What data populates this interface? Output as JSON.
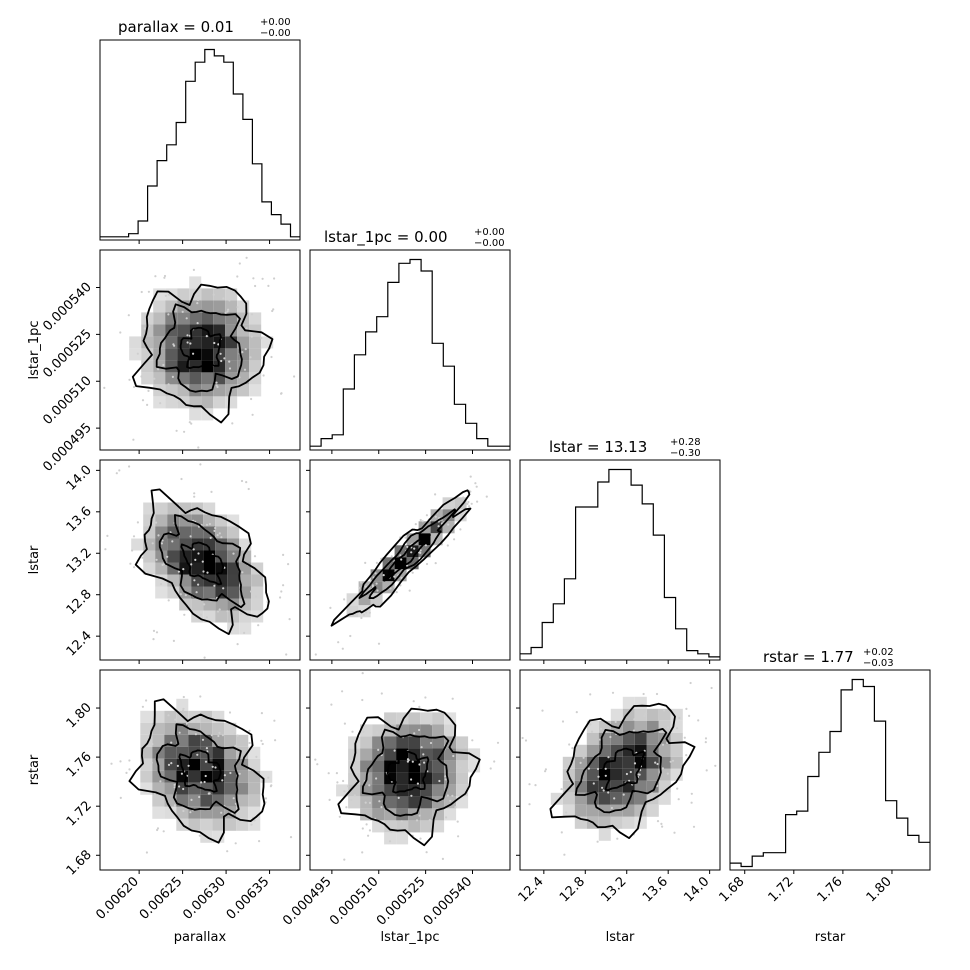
{
  "colors": {
    "ink": "#000000",
    "background": "#ffffff",
    "scatter": "#cfcfcf"
  },
  "chart_data": {
    "type": "corner",
    "parameters": [
      {
        "key": "parallax",
        "label": "parallax",
        "range": [
          0.006155,
          0.006385
        ],
        "ticks": [
          0.0062,
          0.00625,
          0.0063,
          0.00635
        ],
        "tick_labels": [
          "0.00620",
          "0.00625",
          "0.00630",
          "0.00635"
        ]
      },
      {
        "key": "lstar_1pc",
        "label": "lstar_1pc",
        "range": [
          0.000488,
          0.000552
        ],
        "ticks": [
          0.000495,
          0.00051,
          0.000525,
          0.00054
        ],
        "tick_labels": [
          "0.000495",
          "0.000510",
          "0.000525",
          "0.000540"
        ]
      },
      {
        "key": "lstar",
        "label": "lstar",
        "range": [
          12.17,
          14.1
        ],
        "ticks": [
          12.4,
          12.8,
          13.2,
          13.6,
          14.0
        ],
        "tick_labels": [
          "12.4",
          "12.8",
          "13.2",
          "13.6",
          "14.0"
        ]
      },
      {
        "key": "rstar",
        "label": "rstar",
        "range": [
          1.668,
          1.831
        ],
        "ticks": [
          1.68,
          1.72,
          1.76,
          1.8
        ],
        "tick_labels": [
          "1.68",
          "1.72",
          "1.76",
          "1.80"
        ]
      }
    ],
    "titles": [
      {
        "main": "parallax = 0.01",
        "upper": "+0.00",
        "lower": "−0.00"
      },
      {
        "main": "lstar_1pc = 0.00",
        "upper": "+0.00",
        "lower": "−0.00"
      },
      {
        "main": "lstar = 13.13",
        "upper": "+0.28",
        "lower": "−0.30"
      },
      {
        "main": "rstar = 1.77",
        "upper": "+0.02",
        "lower": "−0.03"
      }
    ],
    "histograms": [
      {
        "param": "parallax",
        "counts": [
          1,
          1,
          1,
          2,
          6,
          17,
          25,
          30,
          37,
          50,
          56,
          60,
          58,
          56,
          46,
          38,
          24,
          12,
          8,
          5,
          1
        ]
      },
      {
        "param": "lstar_1pc",
        "counts": [
          1,
          3,
          4,
          16,
          25,
          31,
          35,
          44,
          49,
          50,
          47,
          28,
          22,
          12,
          7,
          3,
          1,
          1
        ]
      },
      {
        "param": "lstar",
        "counts": [
          2,
          4,
          12,
          18,
          26,
          49,
          49,
          57,
          61,
          61,
          56,
          50,
          40,
          20,
          10,
          3,
          2,
          1
        ]
      },
      {
        "param": "rstar",
        "counts": [
          2,
          1,
          4,
          5,
          5,
          16,
          17,
          27,
          34,
          40,
          52,
          55,
          53,
          43,
          20,
          15,
          10,
          8
        ]
      }
    ],
    "pairs": [
      {
        "x": "parallax",
        "y": "lstar_1pc",
        "correlation": 0.0
      },
      {
        "x": "parallax",
        "y": "lstar",
        "correlation": -0.45
      },
      {
        "x": "parallax",
        "y": "rstar",
        "correlation": -0.25
      },
      {
        "x": "lstar_1pc",
        "y": "lstar",
        "correlation": 0.95
      },
      {
        "x": "lstar_1pc",
        "y": "rstar",
        "correlation": 0.1
      },
      {
        "x": "lstar",
        "y": "rstar",
        "correlation": 0.35
      }
    ],
    "grid": false
  }
}
